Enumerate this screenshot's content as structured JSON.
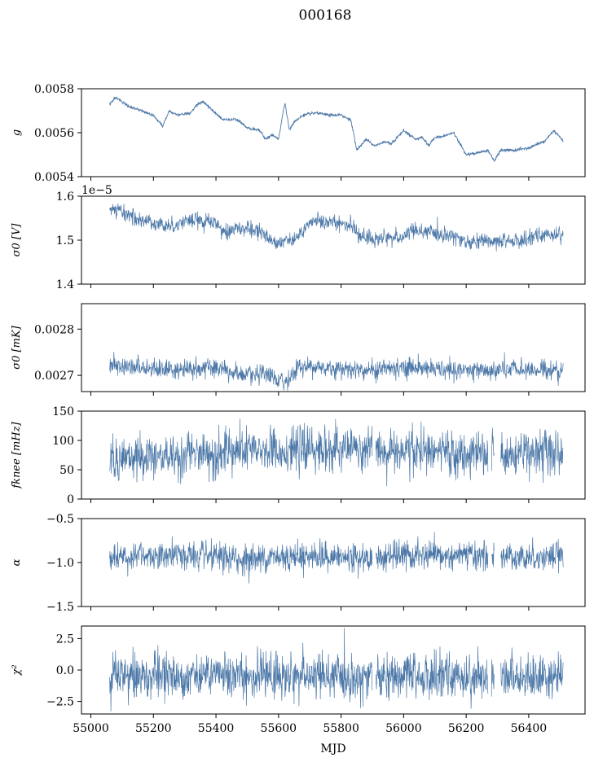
{
  "figure": {
    "suptitle": "000168",
    "xlabel": "MJD"
  },
  "colors": {
    "series": "#4c78a8",
    "axes": "#000000",
    "background": "#ffffff"
  },
  "chart_data": [
    {
      "type": "line",
      "ylabel": "g",
      "xlim": [
        54970,
        56580
      ],
      "ylim": [
        0.0054,
        0.0058
      ],
      "yticks": [
        0.0054,
        0.0056,
        0.0058
      ],
      "ytick_labels": [
        "0.0054",
        "0.0056",
        "0.0058"
      ],
      "offset_text": "",
      "noise": 3.5e-06,
      "x": [
        55060,
        55080,
        55120,
        55160,
        55200,
        55230,
        55250,
        55280,
        55320,
        55340,
        55360,
        55390,
        55420,
        55440,
        55470,
        55500,
        55540,
        55560,
        55580,
        55600,
        55620,
        55635,
        55650,
        55680,
        55720,
        55760,
        55800,
        55830,
        55840,
        55850,
        55880,
        55910,
        55940,
        55960,
        56000,
        56020,
        56040,
        56060,
        56080,
        56100,
        56120,
        56160,
        56200,
        56240,
        56270,
        56290,
        56310,
        56350,
        56400,
        56450,
        56480,
        56500,
        56510
      ],
      "y": [
        0.00573,
        0.00576,
        0.00572,
        0.0057,
        0.00568,
        0.00563,
        0.0057,
        0.00568,
        0.00569,
        0.00573,
        0.00574,
        0.0057,
        0.00566,
        0.00566,
        0.00566,
        0.00562,
        0.00561,
        0.00557,
        0.00559,
        0.00557,
        0.00574,
        0.00561,
        0.00565,
        0.00568,
        0.00569,
        0.00568,
        0.00568,
        0.00566,
        0.0056,
        0.00552,
        0.00557,
        0.00554,
        0.00556,
        0.00555,
        0.00561,
        0.00559,
        0.00557,
        0.00558,
        0.00554,
        0.00558,
        0.00558,
        0.0056,
        0.0055,
        0.00551,
        0.00552,
        0.00547,
        0.00552,
        0.00552,
        0.00553,
        0.00556,
        0.00561,
        0.00558,
        0.00556
      ]
    },
    {
      "type": "line",
      "ylabel": "σ0 [V]",
      "xlim": [
        54970,
        56580
      ],
      "ylim": [
        1.4,
        1.6
      ],
      "yticks": [
        1.4,
        1.5,
        1.6
      ],
      "ytick_labels": [
        "1.4",
        "1.5",
        "1.6"
      ],
      "offset_text": "1e−5",
      "noise": 0.01,
      "x": [
        55060,
        55100,
        55150,
        55200,
        55260,
        55300,
        55360,
        55400,
        55430,
        55460,
        55480,
        55510,
        55540,
        55580,
        55620,
        55660,
        55690,
        55720,
        55760,
        55800,
        55830,
        55860,
        55880,
        55900,
        55940,
        55990,
        56020,
        56060,
        56100,
        56160,
        56200,
        56240,
        56270,
        56300,
        56330,
        56380,
        56430,
        56470,
        56510
      ],
      "y": [
        1.568,
        1.565,
        1.547,
        1.54,
        1.532,
        1.545,
        1.543,
        1.538,
        1.515,
        1.527,
        1.53,
        1.522,
        1.52,
        1.5,
        1.498,
        1.505,
        1.53,
        1.545,
        1.54,
        1.54,
        1.535,
        1.505,
        1.51,
        1.5,
        1.508,
        1.502,
        1.52,
        1.52,
        1.515,
        1.512,
        1.492,
        1.498,
        1.5,
        1.49,
        1.5,
        1.498,
        1.51,
        1.513,
        1.515
      ]
    },
    {
      "type": "line",
      "ylabel": "σ0 [mK]",
      "xlim": [
        54970,
        56580
      ],
      "ylim": [
        0.002665,
        0.002855
      ],
      "yticks": [
        0.0027,
        0.0028
      ],
      "ytick_labels": [
        "0.0027",
        "0.0028"
      ],
      "offset_text": "",
      "noise": 1.2e-05,
      "x": [
        55060,
        55100,
        55200,
        55300,
        55380,
        55440,
        55500,
        55560,
        55600,
        55620,
        55640,
        55660,
        55700,
        55800,
        55900,
        56000,
        56100,
        56150,
        56200,
        56270,
        56300,
        56400,
        56510
      ],
      "y": [
        0.002723,
        0.00272,
        0.002716,
        0.002712,
        0.002718,
        0.002708,
        0.002698,
        0.0027,
        0.002688,
        0.002686,
        0.002698,
        0.002718,
        0.00272,
        0.002715,
        0.002712,
        0.002718,
        0.002715,
        0.002708,
        0.002712,
        0.00271,
        0.002711,
        0.002713,
        0.002712
      ]
    },
    {
      "type": "line",
      "ylabel": "fknee [mHz]",
      "xlim": [
        54970,
        56580
      ],
      "ylim": [
        0,
        150
      ],
      "yticks": [
        0,
        50,
        100,
        150
      ],
      "ytick_labels": [
        "0",
        "50",
        "100",
        "150"
      ],
      "offset_text": "",
      "noise": 21,
      "gaps": [
        [
          55900,
          55910
        ],
        [
          56270,
          56280
        ],
        [
          56290,
          56310
        ]
      ],
      "x": [
        55060,
        55200,
        55300,
        55400,
        55500,
        55600,
        55700,
        55800,
        55900,
        56000,
        56100,
        56200,
        56260,
        56300,
        56350,
        56400,
        56510
      ],
      "y": [
        70,
        72,
        74,
        78,
        80,
        85,
        84,
        85,
        83,
        82,
        80,
        72,
        78,
        80,
        78,
        82,
        80
      ]
    },
    {
      "type": "line",
      "ylabel": "α",
      "xlim": [
        54970,
        56580
      ],
      "ylim": [
        -1.5,
        -0.5
      ],
      "yticks": [
        -1.5,
        -1.0,
        -0.5
      ],
      "ytick_labels": [
        "−1.5",
        "−1.0",
        "−0.5"
      ],
      "offset_text": "",
      "noise": 0.09,
      "gaps": [
        [
          55900,
          55910
        ],
        [
          56270,
          56280
        ],
        [
          56290,
          56310
        ]
      ],
      "x": [
        55060,
        55200,
        55300,
        55400,
        55500,
        55600,
        55700,
        55800,
        55900,
        56000,
        56100,
        56200,
        56300,
        56400,
        56510
      ],
      "y": [
        -0.93,
        -0.92,
        -0.92,
        -0.95,
        -0.96,
        -0.93,
        -0.92,
        -0.95,
        -0.95,
        -0.92,
        -0.93,
        -0.92,
        -0.93,
        -0.93,
        -0.93
      ]
    },
    {
      "type": "line",
      "ylabel": "χ²",
      "xlim": [
        54970,
        56580
      ],
      "ylim": [
        -3.5,
        3.5
      ],
      "yticks": [
        -2.5,
        0.0,
        2.5
      ],
      "ytick_labels": [
        "−2.5",
        "0.0",
        "2.5"
      ],
      "offset_text": "",
      "noise": 1.0,
      "gaps": [
        [
          55900,
          55910
        ],
        [
          56270,
          56280
        ],
        [
          56290,
          56310
        ]
      ],
      "x": [
        55060,
        55300,
        55600,
        55900,
        56200,
        56510
      ],
      "y": [
        -0.5,
        -0.4,
        -0.5,
        -0.6,
        -0.5,
        -0.5
      ]
    }
  ],
  "xaxis": {
    "ticks": [
      55000,
      55200,
      55400,
      55600,
      55800,
      56000,
      56200,
      56400
    ],
    "tick_labels": [
      "55000",
      "55200",
      "55400",
      "55600",
      "55800",
      "56000",
      "56200",
      "56400"
    ]
  }
}
